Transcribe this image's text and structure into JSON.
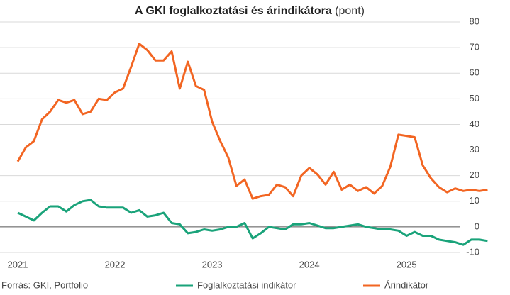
{
  "chart_data": {
    "type": "line",
    "title": "A GKI foglalkoztatási és árindikátora",
    "title_unit": "(pont)",
    "source": "Forrás: GKI, Portfolio",
    "categories": [
      "2021",
      null,
      null,
      null,
      null,
      null,
      null,
      null,
      null,
      null,
      null,
      null,
      "2022",
      null,
      null,
      null,
      null,
      null,
      null,
      null,
      null,
      null,
      null,
      null,
      "2023",
      null,
      null,
      null,
      null,
      null,
      null,
      null,
      null,
      null,
      null,
      null,
      "2024",
      null,
      null,
      null,
      null,
      null,
      null,
      null,
      null,
      null,
      null,
      null,
      "2025",
      null,
      null,
      null,
      null,
      null,
      null,
      null,
      null,
      null,
      null
    ],
    "series": [
      {
        "name": "Foglalkoztatási indikátor",
        "color": "#1aa37a",
        "values": [
          5.5,
          4,
          2.5,
          5.5,
          8,
          8,
          6,
          8.5,
          10,
          10.5,
          8,
          7.5,
          7.5,
          7.5,
          5.5,
          6.5,
          4,
          4.5,
          5.5,
          1.5,
          1,
          -2.5,
          -2,
          -1,
          -1.5,
          -1,
          0,
          0,
          1.5,
          -4.5,
          -2.5,
          0,
          -0.5,
          -1,
          1,
          1,
          1.5,
          0.5,
          -0.5,
          -0.5,
          0,
          0.5,
          1,
          0,
          -0.5,
          -1,
          -1,
          -1.5,
          -3.5,
          -2,
          -3.5,
          -3.5,
          -5,
          -5.5,
          -6,
          -7,
          -5,
          -5,
          -5.5
        ]
      },
      {
        "name": "Árindikátor",
        "color": "#f26522",
        "values": [
          25.5,
          31,
          33.5,
          42,
          45,
          49.5,
          48.5,
          49.5,
          44,
          45,
          50,
          49.5,
          52.5,
          54,
          62.5,
          71.5,
          69,
          65,
          65,
          68.5,
          54,
          64.5,
          55,
          53.5,
          41,
          33.5,
          27,
          16,
          18.5,
          11,
          12,
          12.5,
          16.5,
          15.5,
          12,
          20,
          23,
          20.5,
          16.5,
          21.5,
          14.5,
          16.5,
          14,
          15.5,
          13,
          16,
          23.5,
          36,
          35.5,
          35,
          24,
          19,
          15.5,
          13.5,
          15,
          14,
          14.5,
          14,
          14.5
        ]
      }
    ],
    "ylim": [
      -10,
      80
    ],
    "yticks": [
      -10,
      0,
      10,
      20,
      30,
      40,
      50,
      60,
      70,
      80
    ],
    "grid": true
  }
}
